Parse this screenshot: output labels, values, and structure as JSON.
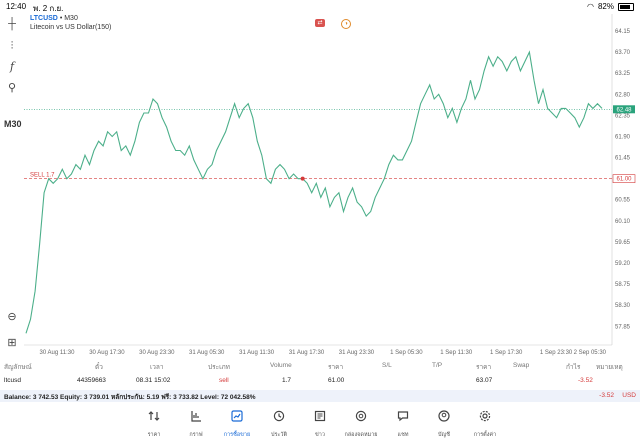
{
  "status_bar": {
    "time": "12:40",
    "date": "พ. 2 ก.ย.",
    "battery": "82%"
  },
  "chart": {
    "symbol": "LTCUSD",
    "timeframe_suffix": " • M30",
    "description": "Litecoin vs US Dollar(150)",
    "timeframe_label": "M30",
    "sell_label": "SELL 1.7",
    "sell_price_tag": "61.00",
    "current_price_tag": "62.48",
    "colors": {
      "line": "#4caf8a",
      "accent": "#1a6bd6",
      "sell": "#d43a3a",
      "price_tag": "#2aa37c"
    }
  },
  "chart_data": {
    "type": "line",
    "series": [
      {
        "values": [
          57.7,
          58.0,
          58.6,
          59.6,
          60.7,
          61.0,
          60.9,
          61.0,
          61.2,
          61.0,
          61.1,
          61.3,
          61.2,
          61.5,
          61.3,
          61.6,
          61.8,
          61.7,
          62.0,
          61.9,
          62.0,
          61.6,
          61.7,
          61.5,
          61.8,
          62.2,
          62.4,
          62.4,
          62.7,
          62.6,
          62.3,
          62.1,
          61.8,
          61.6,
          61.6,
          61.5,
          61.7,
          61.4,
          61.2,
          61.0,
          61.2,
          61.3,
          61.6,
          61.8,
          62.0,
          62.3,
          62.6,
          62.3,
          62.5,
          62.6,
          62.3,
          61.8,
          61.5,
          61.0,
          60.9,
          61.2,
          61.3,
          61.2,
          61.0,
          61.1,
          61.0,
          61.0,
          60.9,
          60.7,
          60.9,
          60.6,
          60.8,
          60.4,
          60.6,
          60.7,
          60.3,
          60.6,
          60.8,
          60.5,
          60.4,
          60.2,
          60.3,
          60.6,
          60.8,
          61.0,
          61.3,
          61.5,
          61.4,
          61.4,
          61.6,
          61.8,
          62.2,
          62.6,
          62.8,
          63.0,
          62.7,
          62.8,
          62.6,
          62.3,
          62.5,
          62.2,
          62.5,
          62.7,
          63.1,
          62.7,
          62.9,
          63.3,
          63.6,
          63.4,
          63.6,
          63.5,
          63.3,
          63.5,
          63.6,
          63.3,
          63.5,
          63.7,
          63.1,
          62.6,
          62.9,
          62.5,
          62.4,
          62.3,
          62.5,
          62.5,
          62.4,
          62.3,
          62.1,
          62.3,
          62.6,
          62.5,
          62.6,
          62.5
        ],
        "current": 62.48
      }
    ],
    "x_ticks": [
      "30 Aug 11:30",
      "30 Aug 17:30",
      "30 Aug 23:30",
      "31 Aug 05:30",
      "31 Aug 11:30",
      "31 Aug 17:30",
      "31 Aug 23:30",
      "1 Sep 05:30",
      "1 Sep 11:30",
      "1 Sep 17:30",
      "1 Sep 23:30",
      "2 Sep 05:30"
    ],
    "y_ticks": [
      "64.15",
      "63.70",
      "63.25",
      "62.80",
      "62.35",
      "61.90",
      "61.45",
      "61.00",
      "60.55",
      "60.10",
      "59.65",
      "59.20",
      "58.75",
      "58.30",
      "57.85"
    ],
    "ylim": [
      57.6,
      64.3
    ],
    "sell_level": 61.0,
    "sell_marker_index": 61,
    "grid": false
  },
  "table": {
    "headers": [
      "สัญลักษณ์",
      "ตั๋ว",
      "เวลา",
      "ประเภท",
      "Volume",
      "ราคา",
      "S/L",
      "T/P",
      "ราคา",
      "Swap",
      "กำไร",
      "หมายเหตุ"
    ],
    "row": [
      "ltcusd",
      "44359663",
      "08.31 15:02",
      "sell",
      "1.7",
      "61.00",
      "",
      "",
      "63.07",
      "",
      "-3.52",
      ""
    ]
  },
  "balance": {
    "text": "Balance: 3 742.53 Equity: 3 739.01 หลักประกัน: 5.19 ฟรี: 3 733.82 Level: 72 042.58%",
    "profit": "-3.52",
    "currency": "USD"
  },
  "nav": {
    "items": [
      {
        "label": "ราคา",
        "icon": "quotes-icon"
      },
      {
        "label": "กราฟ",
        "icon": "chart-icon"
      },
      {
        "label": "การซื้อขาย",
        "icon": "trade-icon"
      },
      {
        "label": "ประวัติ",
        "icon": "history-icon"
      },
      {
        "label": "ข่าว",
        "icon": "news-icon"
      },
      {
        "label": "กล่องจดหมาย",
        "icon": "mailbox-icon"
      },
      {
        "label": "แชท",
        "icon": "chat-icon"
      },
      {
        "label": "บัญชี",
        "icon": "account-icon"
      },
      {
        "label": "การตั้งค่า",
        "icon": "settings-icon"
      }
    ],
    "active_index": 2
  }
}
